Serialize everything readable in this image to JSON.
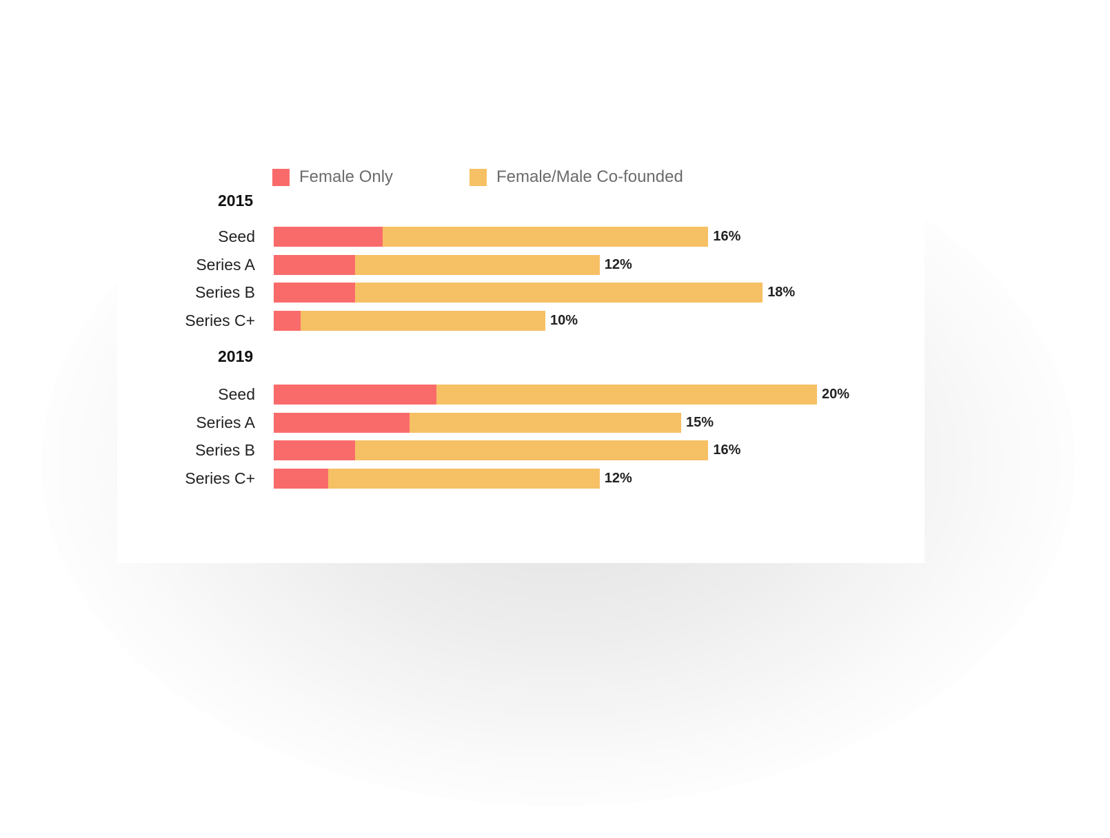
{
  "colors": {
    "female_only": "#f96b6b",
    "co_founded": "#f6c065"
  },
  "chart_data": {
    "type": "bar",
    "orientation": "horizontal",
    "stacked": true,
    "legend": [
      {
        "name": "Female Only",
        "color": "#f96b6b"
      },
      {
        "name": "Female/Male Co-founded",
        "color": "#f6c065"
      }
    ],
    "legend_placement": "top",
    "grid": false,
    "xlim": [
      0,
      20
    ],
    "groups": [
      {
        "label": "2015",
        "rows": [
          {
            "category": "Seed",
            "female_only": 4,
            "co_founded": 12,
            "total": 16,
            "label": "16%"
          },
          {
            "category": "Series A",
            "female_only": 3,
            "co_founded": 9,
            "total": 12,
            "label": "12%"
          },
          {
            "category": "Series B",
            "female_only": 3,
            "co_founded": 15,
            "total": 18,
            "label": "18%"
          },
          {
            "category": "Series C+",
            "female_only": 1,
            "co_founded": 9,
            "total": 10,
            "label": "10%"
          }
        ]
      },
      {
        "label": "2019",
        "rows": [
          {
            "category": "Seed",
            "female_only": 6,
            "co_founded": 14,
            "total": 20,
            "label": "20%"
          },
          {
            "category": "Series A",
            "female_only": 5,
            "co_founded": 10,
            "total": 15,
            "label": "15%"
          },
          {
            "category": "Series B",
            "female_only": 3,
            "co_founded": 13,
            "total": 16,
            "label": "16%"
          },
          {
            "category": "Series C+",
            "female_only": 2,
            "co_founded": 10,
            "total": 12,
            "label": "12%"
          }
        ]
      }
    ]
  }
}
